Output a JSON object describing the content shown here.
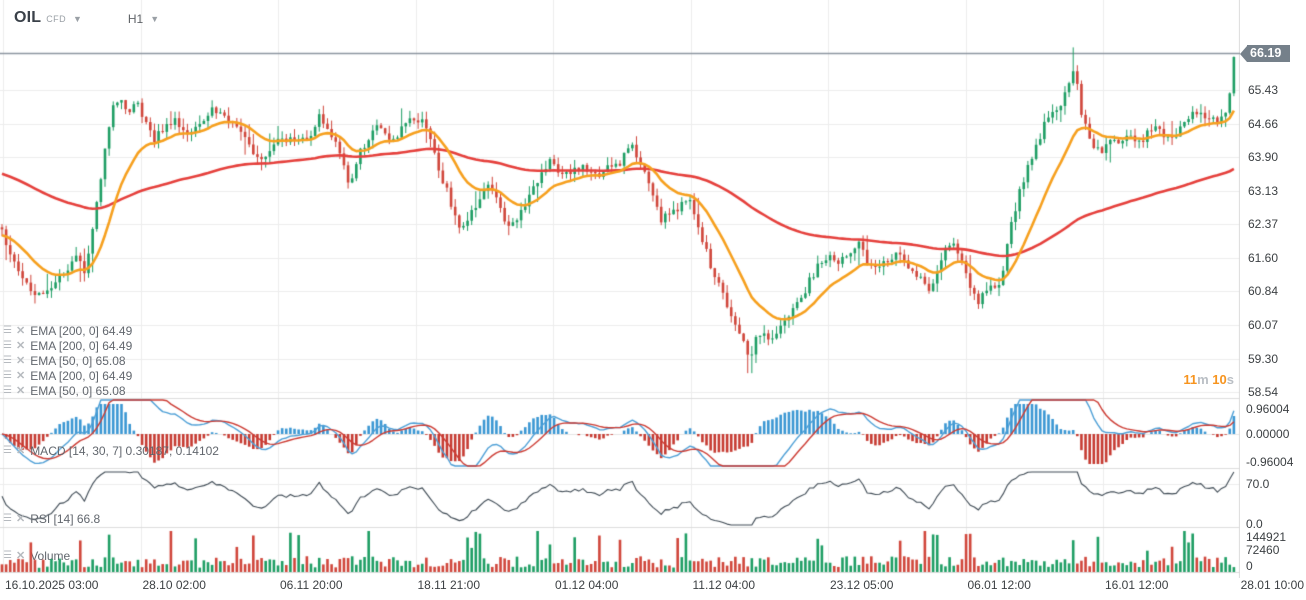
{
  "header": {
    "symbol": "OIL",
    "market_type": "CFD",
    "timeframe": "H1"
  },
  "quote": {
    "last": "66.19"
  },
  "timer": {
    "minutes": "11",
    "minutes_unit": "m",
    "seconds": "10",
    "seconds_unit": "s"
  },
  "indicators": {
    "overlays": [
      "EMA  [200, 0]  64.49",
      "EMA  [200, 0]  64.49",
      "EMA  [50, 0]  65.08",
      "EMA  [200, 0]  64.49",
      "EMA  [50, 0]  65.08"
    ],
    "macd": "MACD  [14, 30, 7]  0.30187,  0.14102",
    "rsi": "RSI  [14]  66.8",
    "volume": "Volume"
  },
  "axes": {
    "price_ticks": [
      "65.43",
      "64.66",
      "63.90",
      "63.13",
      "62.37",
      "61.60",
      "60.84",
      "60.07",
      "59.30",
      "58.54"
    ],
    "macd_ticks": [
      [
        "0.96004",
        409
      ],
      [
        "0.00000",
        434
      ],
      [
        "-0.96004",
        462
      ]
    ],
    "rsi_ticks": [
      [
        "70.0",
        484
      ],
      [
        "0.0",
        524
      ]
    ],
    "volume_ticks": [
      [
        "144921",
        537
      ],
      [
        "72460",
        550
      ],
      [
        "0",
        566
      ]
    ],
    "time_labels": [
      "16.10.2025  03:00",
      "28.10  02:00",
      "06.11  20:00",
      "18.11  21:00",
      "01.12  04:00",
      "11.12  04:00",
      "23.12  05:00",
      "06.01  12:00",
      "16.01  12:00",
      "28.01  10:00"
    ]
  },
  "colors": {
    "candle_up": "#1e9e64",
    "candle_down": "#d0463b",
    "ema_fast": "#f6a01f",
    "ema_slow": "#e5403c",
    "macd_line": "#4d9fd6",
    "macd_signal": "#cc3b33",
    "macd_hist_pos": "#3b97d3",
    "macd_hist_neg": "#c63a31",
    "rsi_line": "#3e4a54",
    "price_line": "#8d97a1",
    "badge_bg": "#75808a",
    "timer_accent": "#f7941e",
    "grid": "#ededed",
    "panel_border": "#dcdcdc",
    "axis_text": "#3c4043"
  },
  "chart_data": {
    "type": "candlestick",
    "symbol": "OIL CFD",
    "timeframe": "H1",
    "price_range": [
      58.54,
      66.19
    ],
    "last_price": 66.19,
    "panels": [
      "price+EMA(50)+EMA(200)",
      "MACD(14,30,7)",
      "RSI(14)",
      "Volume"
    ],
    "macd_range": [
      -0.96004,
      0.96004
    ],
    "rsi_latest": 66.8,
    "volume_max": 144921,
    "x_start": "16.10.2025 03:00",
    "x_end": "28.01 10:00",
    "anchors": [
      [
        0,
        62.3
      ],
      [
        15,
        61.4
      ],
      [
        30,
        60.9
      ],
      [
        45,
        60.7
      ],
      [
        60,
        61.2
      ],
      [
        75,
        61.6
      ],
      [
        85,
        61.3
      ],
      [
        95,
        62.6
      ],
      [
        105,
        64.0
      ],
      [
        113,
        65.0
      ],
      [
        120,
        65.3
      ],
      [
        128,
        64.9
      ],
      [
        135,
        65.2
      ],
      [
        145,
        64.7
      ],
      [
        155,
        64.3
      ],
      [
        165,
        64.6
      ],
      [
        175,
        64.8
      ],
      [
        185,
        64.4
      ],
      [
        195,
        64.5
      ],
      [
        210,
        65.0
      ],
      [
        225,
        64.8
      ],
      [
        240,
        64.6
      ],
      [
        255,
        64.0
      ],
      [
        265,
        63.8
      ],
      [
        280,
        64.4
      ],
      [
        295,
        64.2
      ],
      [
        310,
        64.3
      ],
      [
        320,
        64.9
      ],
      [
        330,
        64.5
      ],
      [
        340,
        63.9
      ],
      [
        350,
        63.3
      ],
      [
        360,
        64.0
      ],
      [
        370,
        64.4
      ],
      [
        380,
        64.6
      ],
      [
        390,
        64.3
      ],
      [
        400,
        64.5
      ],
      [
        410,
        64.7
      ],
      [
        420,
        64.8
      ],
      [
        430,
        64.3
      ],
      [
        440,
        63.6
      ],
      [
        450,
        62.9
      ],
      [
        460,
        62.3
      ],
      [
        470,
        62.6
      ],
      [
        480,
        62.9
      ],
      [
        490,
        63.3
      ],
      [
        500,
        62.7
      ],
      [
        510,
        62.3
      ],
      [
        520,
        62.6
      ],
      [
        530,
        63.1
      ],
      [
        540,
        63.5
      ],
      [
        550,
        63.8
      ],
      [
        560,
        63.6
      ],
      [
        570,
        63.5
      ],
      [
        580,
        63.7
      ],
      [
        590,
        63.6
      ],
      [
        600,
        63.5
      ],
      [
        610,
        63.7
      ],
      [
        620,
        63.8
      ],
      [
        630,
        64.2
      ],
      [
        640,
        63.8
      ],
      [
        650,
        63.2
      ],
      [
        660,
        62.5
      ],
      [
        670,
        62.6
      ],
      [
        680,
        62.8
      ],
      [
        690,
        62.9
      ],
      [
        700,
        62.1
      ],
      [
        710,
        61.5
      ],
      [
        720,
        60.9
      ],
      [
        730,
        60.3
      ],
      [
        740,
        59.8
      ],
      [
        750,
        59.4
      ],
      [
        760,
        59.9
      ],
      [
        770,
        59.8
      ],
      [
        780,
        60.0
      ],
      [
        790,
        60.3
      ],
      [
        800,
        60.6
      ],
      [
        810,
        61.1
      ],
      [
        820,
        61.5
      ],
      [
        830,
        61.7
      ],
      [
        840,
        61.5
      ],
      [
        850,
        61.7
      ],
      [
        860,
        61.9
      ],
      [
        870,
        61.4
      ],
      [
        880,
        61.5
      ],
      [
        890,
        61.6
      ],
      [
        900,
        61.7
      ],
      [
        910,
        61.4
      ],
      [
        920,
        61.2
      ],
      [
        930,
        60.9
      ],
      [
        940,
        61.5
      ],
      [
        950,
        62.0
      ],
      [
        960,
        61.6
      ],
      [
        970,
        60.9
      ],
      [
        980,
        60.6
      ],
      [
        990,
        61.0
      ],
      [
        1000,
        60.9
      ],
      [
        1010,
        62.2
      ],
      [
        1020,
        63.2
      ],
      [
        1030,
        63.8
      ],
      [
        1040,
        64.4
      ],
      [
        1050,
        64.9
      ],
      [
        1060,
        65.0
      ],
      [
        1070,
        65.6
      ],
      [
        1075,
        66.1
      ],
      [
        1081,
        65.0
      ],
      [
        1090,
        64.2
      ],
      [
        1100,
        64.0
      ],
      [
        1110,
        64.4
      ],
      [
        1120,
        64.1
      ],
      [
        1130,
        64.5
      ],
      [
        1140,
        64.2
      ],
      [
        1150,
        64.6
      ],
      [
        1160,
        64.6
      ],
      [
        1170,
        64.2
      ],
      [
        1180,
        64.5
      ],
      [
        1190,
        64.9
      ],
      [
        1200,
        64.9
      ],
      [
        1210,
        64.7
      ],
      [
        1220,
        64.8
      ],
      [
        1228,
        65.0
      ],
      [
        1236,
        66.19
      ]
    ]
  }
}
